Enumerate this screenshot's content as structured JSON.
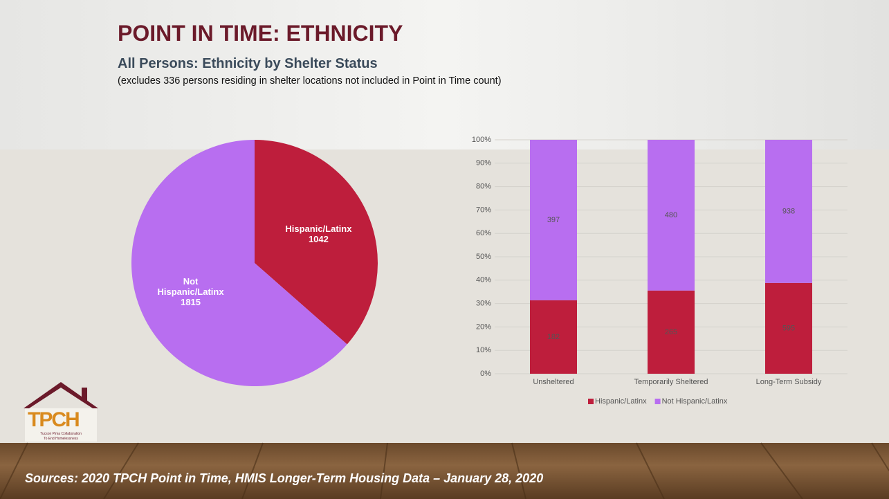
{
  "header": {
    "title": "POINT IN TIME: ETHNICITY",
    "subtitle": "All Persons: Ethnicity by Shelter Status",
    "note": "(excludes 336 persons residing in shelter locations not included in Point in Time count)"
  },
  "chart_data": [
    {
      "type": "pie",
      "categories": [
        "Hispanic/Latinx",
        "Not Hispanic/Latinx"
      ],
      "values": [
        1042,
        1815
      ],
      "colors": [
        "#be1e3c",
        "#b86ef0"
      ]
    },
    {
      "type": "bar",
      "stacking": "percent",
      "categories": [
        "Unsheltered",
        "Temporarily Sheltered",
        "Long-Term Subsidy"
      ],
      "series": [
        {
          "name": "Hispanic/Latinx",
          "color": "#be1e3c",
          "values": [
            182,
            265,
            595
          ]
        },
        {
          "name": "Not Hispanic/Latinx",
          "color": "#b86ef0",
          "values": [
            397,
            480,
            938
          ]
        }
      ],
      "ylim": [
        0,
        100
      ],
      "yticks": [
        {
          "value": 0,
          "label": "0%"
        },
        {
          "value": 10,
          "label": "10%"
        },
        {
          "value": 20,
          "label": "20%"
        },
        {
          "value": 30,
          "label": "30%"
        },
        {
          "value": 40,
          "label": "40%"
        },
        {
          "value": 50,
          "label": "50%"
        },
        {
          "value": 60,
          "label": "60%"
        },
        {
          "value": 70,
          "label": "70%"
        },
        {
          "value": 80,
          "label": "80%"
        },
        {
          "value": 90,
          "label": "90%"
        },
        {
          "value": 100,
          "label": "100%"
        }
      ],
      "grid": true,
      "legend": "bottom"
    }
  ],
  "logo": {
    "text": "TPCH",
    "tagline": [
      "Tucson Pima Collaboration",
      "To End Homelessness"
    ]
  },
  "footer": {
    "source": "Sources: 2020 TPCH Point in Time, HMIS Longer-Term Housing Data – January 28, 2020"
  }
}
